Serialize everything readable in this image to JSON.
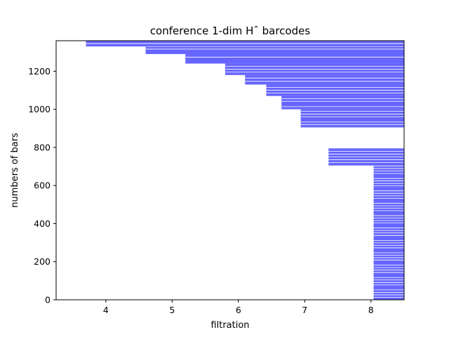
{
  "chart_data": {
    "type": "barcode",
    "title": "conference 1-dim Hˆ barcodes",
    "xlabel": "filtration",
    "ylabel": "numbers of bars",
    "xlim": [
      3.25,
      8.5
    ],
    "ylim": [
      0,
      1360
    ],
    "xticks": [
      4,
      5,
      6,
      7,
      8
    ],
    "yticks": [
      0,
      200,
      400,
      600,
      800,
      1000,
      1200
    ],
    "bar_color": "#6666ff",
    "grid": false,
    "total_bars": 1360,
    "bar_groups": [
      {
        "birth": 8.04,
        "index_start": 0,
        "index_end": 705,
        "death": 8.5
      },
      {
        "birth": 7.36,
        "index_start": 705,
        "index_end": 795,
        "death": 8.5
      },
      {
        "birth": 6.94,
        "index_start": 905,
        "index_end": 1000,
        "death": 8.5
      },
      {
        "birth": 6.65,
        "index_start": 1000,
        "index_end": 1070,
        "death": 8.5
      },
      {
        "birth": 6.42,
        "index_start": 1070,
        "index_end": 1130,
        "death": 8.5
      },
      {
        "birth": 6.1,
        "index_start": 1130,
        "index_end": 1180,
        "death": 8.5
      },
      {
        "birth": 5.8,
        "index_start": 1180,
        "index_end": 1240,
        "death": 8.5
      },
      {
        "birth": 5.2,
        "index_start": 1240,
        "index_end": 1290,
        "death": 8.5
      },
      {
        "birth": 4.6,
        "index_start": 1290,
        "index_end": 1330,
        "death": 8.5
      },
      {
        "birth": 3.7,
        "index_start": 1330,
        "index_end": 1360,
        "death": 8.5
      }
    ]
  }
}
